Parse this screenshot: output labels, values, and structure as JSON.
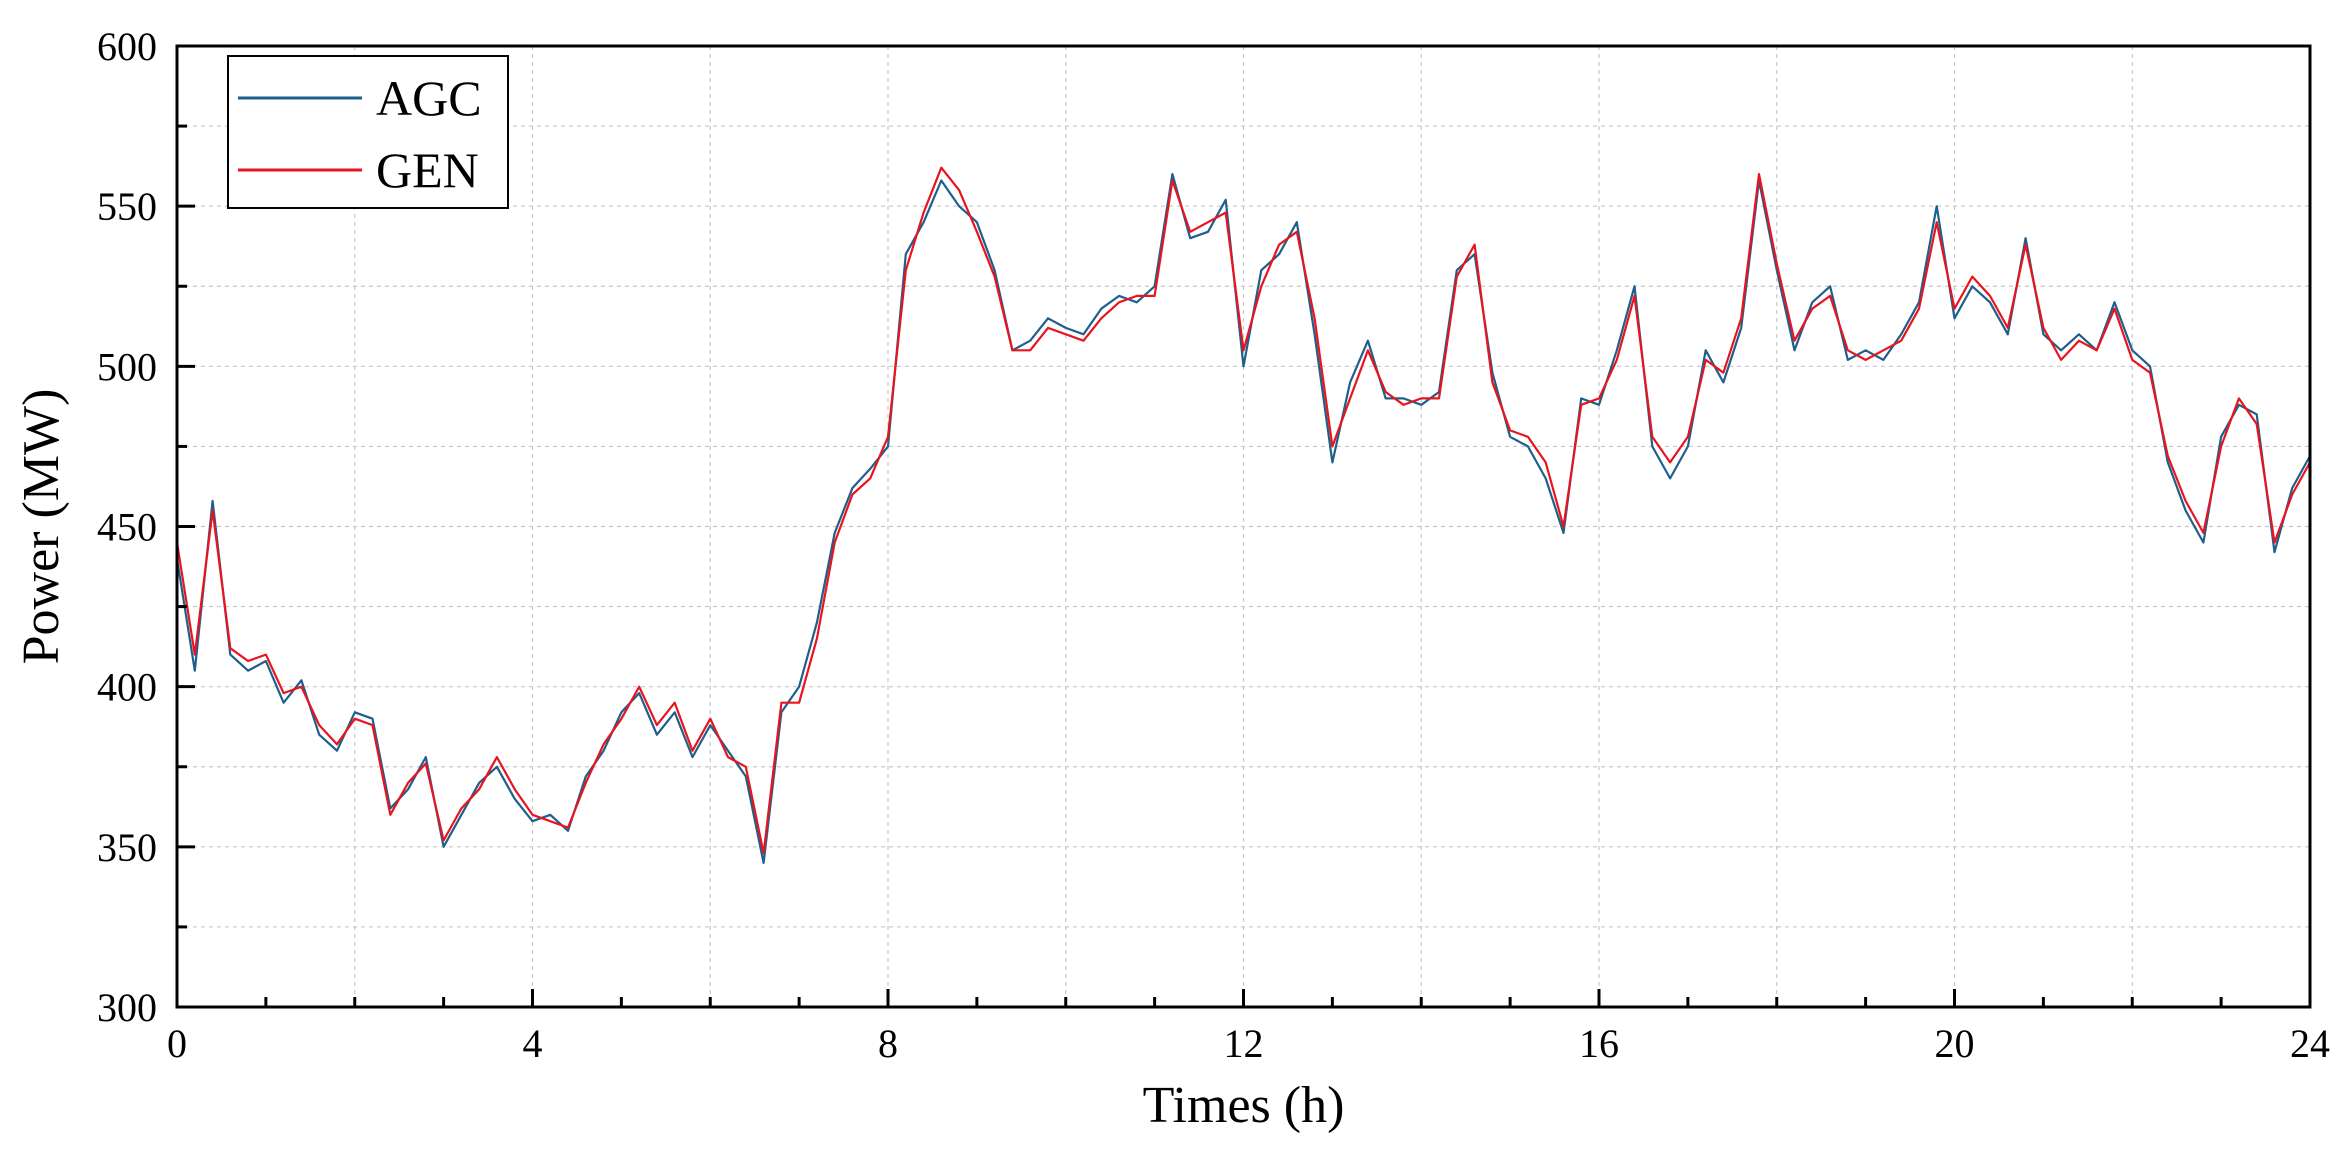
{
  "chart_data": {
    "type": "line",
    "title": "",
    "xlabel": "Times (h)",
    "ylabel": "Power (MW)",
    "xlim": [
      0,
      24
    ],
    "ylim": [
      300,
      600
    ],
    "xticks": [
      0,
      4,
      8,
      12,
      16,
      20,
      24
    ],
    "yticks": [
      300,
      350,
      400,
      450,
      500,
      550,
      600
    ],
    "grid": true,
    "legend": {
      "position": "top-left"
    },
    "x": [
      0,
      0.2,
      0.4,
      0.6,
      0.8,
      1.0,
      1.2,
      1.4,
      1.6,
      1.8,
      2.0,
      2.2,
      2.4,
      2.6,
      2.8,
      3.0,
      3.2,
      3.4,
      3.6,
      3.8,
      4.0,
      4.2,
      4.4,
      4.6,
      4.8,
      5.0,
      5.2,
      5.4,
      5.6,
      5.8,
      6.0,
      6.2,
      6.4,
      6.6,
      6.8,
      7.0,
      7.2,
      7.4,
      7.6,
      7.8,
      8.0,
      8.2,
      8.4,
      8.6,
      8.8,
      9.0,
      9.2,
      9.4,
      9.6,
      9.8,
      10.0,
      10.2,
      10.4,
      10.6,
      10.8,
      11.0,
      11.2,
      11.4,
      11.6,
      11.8,
      12.0,
      12.2,
      12.4,
      12.6,
      12.8,
      13.0,
      13.2,
      13.4,
      13.6,
      13.8,
      14.0,
      14.2,
      14.4,
      14.6,
      14.8,
      15.0,
      15.2,
      15.4,
      15.6,
      15.8,
      16.0,
      16.2,
      16.4,
      16.6,
      16.8,
      17.0,
      17.2,
      17.4,
      17.6,
      17.8,
      18.0,
      18.2,
      18.4,
      18.6,
      18.8,
      19.0,
      19.2,
      19.4,
      19.6,
      19.8,
      20.0,
      20.2,
      20.4,
      20.6,
      20.8,
      21.0,
      21.2,
      21.4,
      21.6,
      21.8,
      22.0,
      22.2,
      22.4,
      22.6,
      22.8,
      23.0,
      23.2,
      23.4,
      23.6,
      23.8,
      24.0
    ],
    "series": [
      {
        "name": "AGC",
        "color": "#1f5f8b",
        "values": [
          440,
          405,
          458,
          410,
          405,
          408,
          395,
          402,
          385,
          380,
          392,
          390,
          362,
          368,
          378,
          350,
          360,
          370,
          375,
          365,
          358,
          360,
          355,
          372,
          380,
          392,
          398,
          385,
          392,
          378,
          388,
          380,
          372,
          345,
          392,
          400,
          420,
          448,
          462,
          468,
          475,
          535,
          545,
          558,
          550,
          545,
          530,
          505,
          508,
          515,
          512,
          510,
          518,
          522,
          520,
          525,
          560,
          540,
          542,
          552,
          500,
          530,
          535,
          545,
          510,
          470,
          495,
          508,
          490,
          490,
          488,
          492,
          530,
          535,
          498,
          478,
          475,
          465,
          448,
          490,
          488,
          505,
          525,
          475,
          465,
          475,
          505,
          495,
          512,
          558,
          530,
          505,
          520,
          525,
          502,
          505,
          502,
          510,
          520,
          550,
          515,
          525,
          520,
          510,
          540,
          510,
          505,
          510,
          505,
          520,
          505,
          500,
          470,
          455,
          445,
          478,
          488,
          485,
          442,
          462,
          472
        ]
      },
      {
        "name": "GEN",
        "color": "#e8141e",
        "values": [
          445,
          410,
          455,
          412,
          408,
          410,
          398,
          400,
          388,
          382,
          390,
          388,
          360,
          370,
          376,
          352,
          362,
          368,
          378,
          368,
          360,
          358,
          356,
          370,
          382,
          390,
          400,
          388,
          395,
          380,
          390,
          378,
          375,
          348,
          395,
          395,
          415,
          445,
          460,
          465,
          478,
          530,
          548,
          562,
          555,
          542,
          528,
          505,
          505,
          512,
          510,
          508,
          515,
          520,
          522,
          522,
          558,
          542,
          545,
          548,
          505,
          525,
          538,
          542,
          515,
          475,
          490,
          505,
          492,
          488,
          490,
          490,
          528,
          538,
          495,
          480,
          478,
          470,
          450,
          488,
          490,
          502,
          522,
          478,
          470,
          478,
          502,
          498,
          515,
          560,
          532,
          508,
          518,
          522,
          505,
          502,
          505,
          508,
          518,
          545,
          518,
          528,
          522,
          512,
          538,
          512,
          502,
          508,
          505,
          518,
          502,
          498,
          472,
          458,
          448,
          475,
          490,
          482,
          445,
          460,
          470
        ]
      }
    ]
  }
}
